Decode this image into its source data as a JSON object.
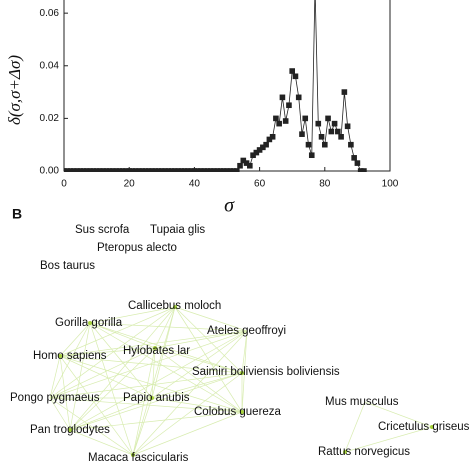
{
  "chart_data": {
    "type": "line",
    "x_label": "σ",
    "y_label": "δ(σ,σ+Δσ)",
    "x": [
      0,
      1,
      2,
      3,
      4,
      5,
      6,
      7,
      8,
      9,
      10,
      11,
      12,
      13,
      14,
      15,
      16,
      17,
      18,
      19,
      20,
      21,
      22,
      23,
      24,
      25,
      26,
      27,
      28,
      29,
      30,
      31,
      32,
      33,
      34,
      35,
      36,
      37,
      38,
      39,
      40,
      41,
      42,
      43,
      44,
      45,
      46,
      47,
      48,
      49,
      50,
      51,
      52,
      53,
      54,
      55,
      56,
      57,
      58,
      59,
      60,
      61,
      62,
      63,
      64,
      65,
      66,
      67,
      68,
      69,
      70,
      71,
      72,
      73,
      74,
      75,
      76,
      77,
      78,
      79,
      80,
      81,
      82,
      83,
      84,
      85,
      86,
      87,
      88,
      89,
      90,
      91,
      92
    ],
    "series": [
      {
        "color": "#222222",
        "values": [
          0,
          0,
          0,
          0,
          0,
          0,
          0,
          0,
          0,
          0,
          0,
          0,
          0,
          0,
          0,
          0,
          0,
          0,
          0,
          0,
          0,
          0,
          0,
          0,
          0,
          0,
          0,
          0,
          0,
          0,
          0,
          0,
          0,
          0,
          0,
          0,
          0,
          0,
          0,
          0,
          0,
          0,
          0,
          0,
          0,
          0,
          0,
          0,
          0,
          0,
          0,
          0,
          0,
          0,
          0.002,
          0.004,
          0.003,
          0.002,
          0.006,
          0.007,
          0.008,
          0.009,
          0.01,
          0.012,
          0.013,
          0.02,
          0.018,
          0.028,
          0.019,
          0.025,
          0.038,
          0.036,
          0.028,
          0.014,
          0.02,
          0.01,
          0.006,
          0.07,
          0.018,
          0.013,
          0.01,
          0.02,
          0.015,
          0.018,
          0.015,
          0.013,
          0.03,
          0.017,
          0.01,
          0.005,
          0.003,
          0,
          0
        ]
      }
    ],
    "xlim": [
      0,
      100
    ],
    "xticks": [
      0,
      20,
      40,
      60,
      80,
      100
    ],
    "ylim": [
      0,
      0.065
    ],
    "yticks": [
      {
        "value": 0,
        "label": "0.00"
      },
      {
        "value": 0.02,
        "label": "0.02"
      },
      {
        "value": 0.04,
        "label": "0.04"
      },
      {
        "value": 0.06,
        "label": "0.06"
      }
    ]
  },
  "panel_b": {
    "label": "B",
    "nodes": [
      "Sus scrofa",
      "Tupaia glis",
      "Pteropus alecto",
      "Bos taurus",
      "Callicebus moloch",
      "Gorilla gorilla",
      "Ateles geoffroyi",
      "Homo sapiens",
      "Hylobates lar",
      "Saimiri boliviensis boliviensis",
      "Pongo pygmaeus",
      "Papio anubis",
      "Colobus guereza",
      "Mus musculus",
      "Cricetulus griseus",
      "Pan troglodytes",
      "Rattus norvegicus",
      "Macaca fascicularis"
    ]
  }
}
